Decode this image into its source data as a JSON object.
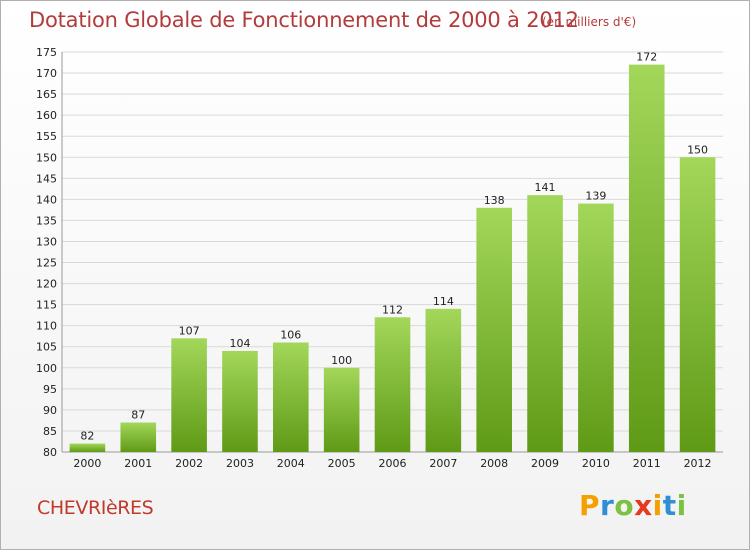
{
  "title": "Dotation Globale de Fonctionnement de 2000 à 2012",
  "subtitle": "(en milliers d'€)",
  "commune": "CHEVRIèRES",
  "logo": {
    "letters": [
      "P",
      "r",
      "o",
      "x",
      "i",
      "t",
      "i"
    ],
    "colors": [
      "#f4a100",
      "#2e8fd4",
      "#7cc242",
      "#e53a1f",
      "#f4a100",
      "#2e8fd4",
      "#7cc242"
    ]
  },
  "chart_data": {
    "type": "bar",
    "title": "Dotation Globale de Fonctionnement de 2000 à 2012",
    "subtitle": "(en milliers d'€)",
    "categories": [
      "2000",
      "2001",
      "2002",
      "2003",
      "2004",
      "2005",
      "2006",
      "2007",
      "2008",
      "2009",
      "2010",
      "2011",
      "2012"
    ],
    "values": [
      82,
      87,
      107,
      104,
      106,
      100,
      112,
      114,
      138,
      141,
      139,
      172,
      150
    ],
    "ylim": [
      80,
      175
    ],
    "yticks": [
      80,
      85,
      90,
      95,
      100,
      105,
      110,
      115,
      120,
      125,
      130,
      135,
      140,
      145,
      150,
      155,
      160,
      165,
      170,
      175
    ],
    "grid": true,
    "colors": {
      "bar_top": "#a3d75a",
      "bar_bottom": "#5f9a16",
      "grid": "#d9d9d9"
    }
  }
}
